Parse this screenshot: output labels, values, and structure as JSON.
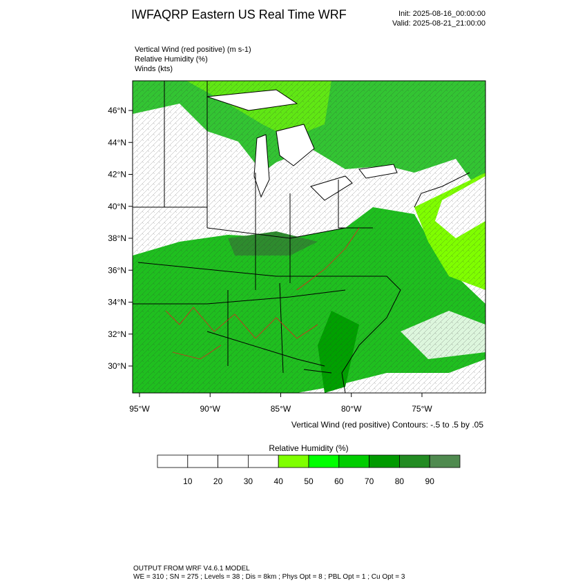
{
  "header": {
    "title": "IWFAQRP Eastern US Real Time WRF",
    "init": "Init: 2025-08-16_00:00:00",
    "valid": "Valid: 2025-08-21_21:00:00"
  },
  "fields": [
    "Vertical Wind (red positive)   (m s-1)",
    "Relative Humidity   (%)",
    "Winds   (kts)"
  ],
  "map": {
    "lat_labels": [
      "46°N",
      "44°N",
      "42°N",
      "40°N",
      "38°N",
      "36°N",
      "34°N",
      "32°N",
      "30°N"
    ],
    "lon_labels": [
      "95°W",
      "90°W",
      "85°W",
      "80°W",
      "75°W"
    ],
    "contour_note": "Vertical Wind (red positive) Contours: -.5 to .5 by .05"
  },
  "colorbar": {
    "title": "Relative Humidity  (%)",
    "ticks": [
      10,
      20,
      30,
      40,
      50,
      60,
      70,
      80,
      90
    ],
    "colors": [
      "#ffffff",
      "#ffffff",
      "#ffffff",
      "#ffffff",
      "#7fff00",
      "#00ff00",
      "#00cd00",
      "#009a00",
      "#228b22",
      "#4f8a4f"
    ]
  },
  "footer": [
    "OUTPUT FROM WRF V4.6.1 MODEL",
    "WE = 310 ; SN = 275 ; Levels = 38 ; Dis = 8km ; Phys Opt = 8 ; PBL Opt = 1 ; Cu Opt = 3"
  ]
}
